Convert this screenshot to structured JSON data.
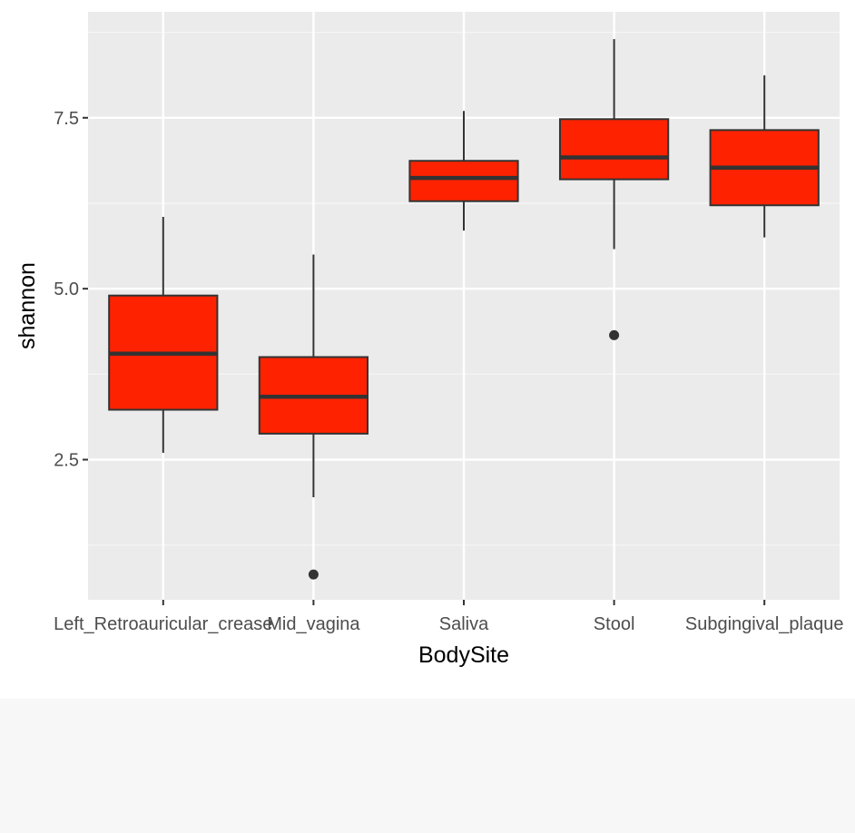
{
  "chart_data": {
    "type": "boxplot",
    "title": "",
    "xlabel": "BodySite",
    "ylabel": "shannon",
    "ylim": [
      0.45,
      9.05
    ],
    "y_ticks": [
      2.5,
      5.0,
      7.5
    ],
    "y_tick_labels": [
      "2.5",
      "5.0",
      "7.5"
    ],
    "grid": true,
    "colors": {
      "panel_background": "#ebebeb",
      "grid_major": "#ffffff",
      "grid_minor": "#f5f5f5",
      "box_fill": "#ff2200",
      "box_outline": "#333333",
      "axis_text": "#4d4d4d",
      "axis_title": "#000000"
    },
    "categories": [
      "Left_Retroauricular_crease",
      "Mid_vagina",
      "Saliva",
      "Stool",
      "Subgingival_plaque"
    ],
    "boxes": [
      {
        "category": "Left_Retroauricular_crease",
        "whisker_low": 2.6,
        "q1": 3.23,
        "median": 4.05,
        "q3": 4.9,
        "whisker_high": 6.05,
        "outliers": []
      },
      {
        "category": "Mid_vagina",
        "whisker_low": 1.95,
        "q1": 2.88,
        "median": 3.42,
        "q3": 4.0,
        "whisker_high": 5.5,
        "outliers": [
          0.82
        ]
      },
      {
        "category": "Saliva",
        "whisker_low": 5.85,
        "q1": 6.28,
        "median": 6.62,
        "q3": 6.87,
        "whisker_high": 7.6,
        "outliers": []
      },
      {
        "category": "Stool",
        "whisker_low": 5.58,
        "q1": 6.6,
        "median": 6.92,
        "q3": 7.48,
        "whisker_high": 8.65,
        "outliers": [
          4.32
        ]
      },
      {
        "category": "Subgingival_plaque",
        "whisker_low": 5.75,
        "q1": 6.22,
        "median": 6.77,
        "q3": 7.32,
        "whisker_high": 8.12,
        "outliers": []
      }
    ]
  }
}
